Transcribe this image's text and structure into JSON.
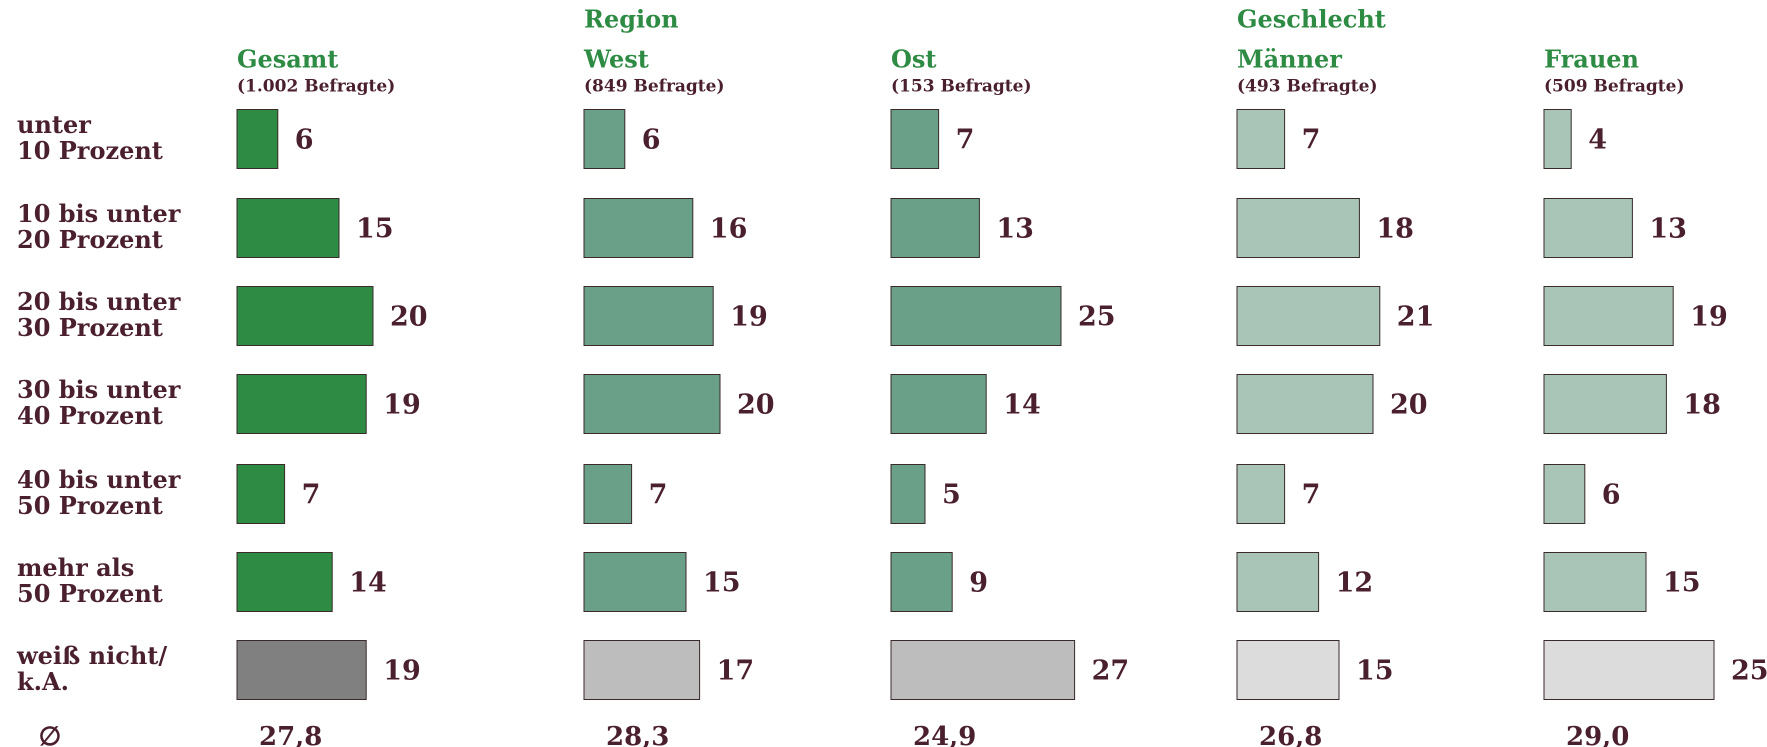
{
  "chart_data": {
    "type": "bar",
    "categories": [
      "unter\n10 Prozent",
      "10 bis unter\n20 Prozent",
      "20 bis unter\n30 Prozent",
      "30 bis unter\n40 Prozent",
      "40 bis unter\n50 Prozent",
      "mehr als\n50 Prozent",
      "weiß nicht/\nk.A."
    ],
    "mean_label": "∅",
    "groups": [
      "Region",
      "Geschlecht"
    ],
    "series": [
      {
        "name": "Gesamt",
        "subtitle": "(1.002 Befragte)",
        "color": "#2e8b44",
        "na_color": "#808080",
        "values": [
          6,
          15,
          20,
          19,
          7,
          14,
          19
        ],
        "mean": 27.8,
        "mean_label": "27,8"
      },
      {
        "name": "West",
        "subtitle": "(849 Befragte)",
        "color": "#6a9f88",
        "na_color": "#bdbdbd",
        "values": [
          6,
          16,
          19,
          20,
          7,
          15,
          17
        ],
        "mean": 28.3,
        "mean_label": "28,3"
      },
      {
        "name": "Ost",
        "subtitle": "(153 Befragte)",
        "color": "#6a9f88",
        "na_color": "#bdbdbd",
        "values": [
          7,
          13,
          25,
          14,
          5,
          9,
          27
        ],
        "mean": 24.9,
        "mean_label": "24,9"
      },
      {
        "name": "Männer",
        "subtitle": "(493 Befragte)",
        "color": "#a8c5b8",
        "na_color": "#dcdcdc",
        "values": [
          7,
          18,
          21,
          20,
          7,
          12,
          15
        ],
        "mean": 26.8,
        "mean_label": "26,8"
      },
      {
        "name": "Frauen",
        "subtitle": "(509 Befragte)",
        "color": "#a8c5b8",
        "na_color": "#dcdcdc",
        "values": [
          4,
          13,
          19,
          18,
          6,
          15,
          25
        ],
        "mean": 29.0,
        "mean_label": "29,0"
      }
    ]
  }
}
